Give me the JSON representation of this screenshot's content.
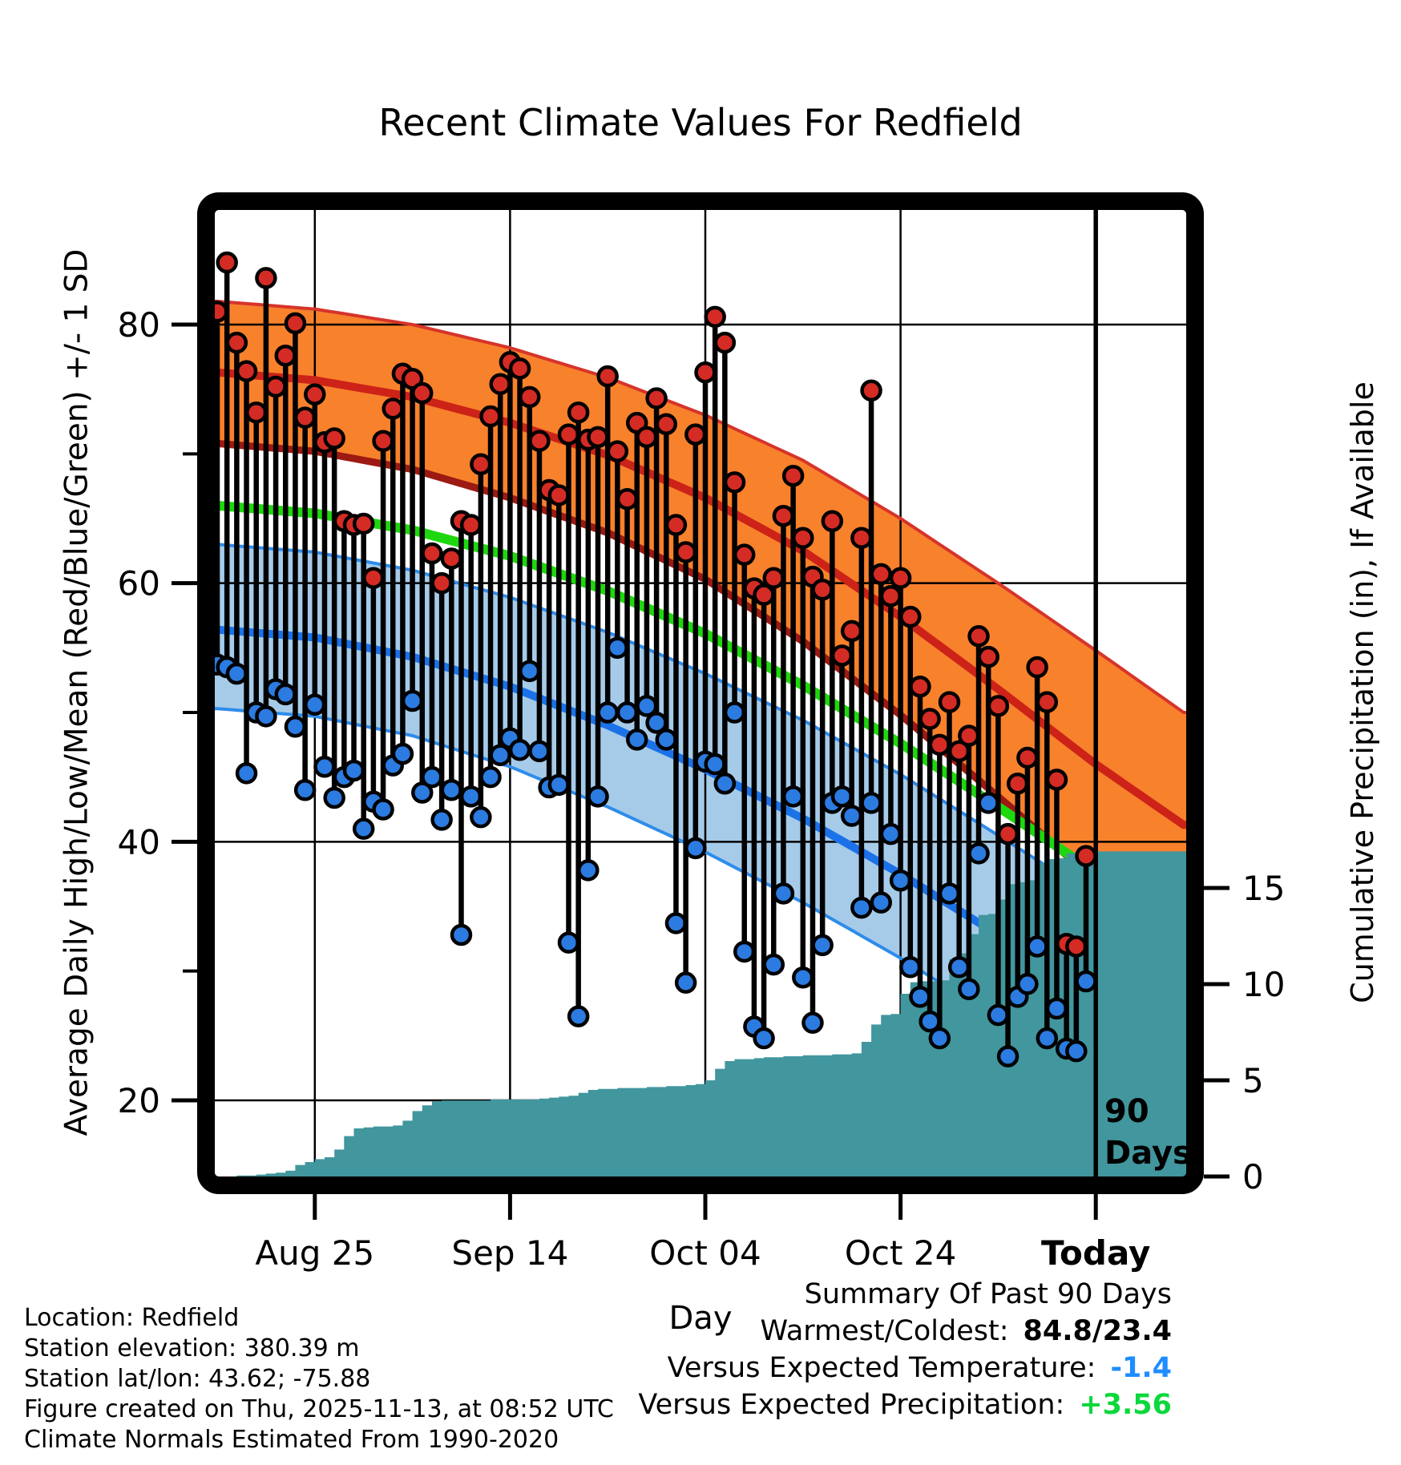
{
  "title": "Recent Climate Values For Redfield",
  "axes": {
    "y_left_label": "Average Daily High/Low/Mean (Red/Blue/Green) +/- 1 SD",
    "y_right_label": "Cumulative Precipitation (in), If Available",
    "x_label": "Day",
    "x_ticks": [
      "Aug 25",
      "Sep 14",
      "Oct 04",
      "Oct 24",
      "Today"
    ],
    "y_left_ticks": [
      80,
      60,
      40,
      20
    ],
    "y_left_minor_ticks": [
      70,
      50,
      30
    ],
    "y_right_ticks": [
      15,
      10,
      5,
      0
    ]
  },
  "footer_left": {
    "line1": "Location: Redfield",
    "line2": "Station elevation: 380.39 m",
    "line3": "Station lat/lon: 43.62; -75.88",
    "line4": "Figure created on Thu, 2025-11-13, at 08:52 UTC",
    "line5": "Climate Normals Estimated From 1990-2020"
  },
  "summary": {
    "title": "Summary Of Past 90 Days",
    "warmest_coldest_label": "Warmest/Coldest:",
    "warmest_coldest_value": "84.8/23.4",
    "vs_temp_label": "Versus Expected Temperature:",
    "vs_temp_value": "-1.4",
    "vs_precip_label": "Versus Expected Precipitation:",
    "vs_precip_value": "+3.56"
  },
  "chart_data": {
    "type": "line",
    "subtype": "daily-stem-plot-with-climate-normal-bands-and-cumulative-precip-area",
    "n_days": 90,
    "x_start": "Aug 15",
    "x_end_label": "Today",
    "annotation": {
      "line1": "90",
      "line2": "Days"
    },
    "ylim_left_F": [
      14,
      89
    ],
    "y_right_unit": "in",
    "grid": "major-only",
    "daily_high_F": [
      81.0,
      84.8,
      78.6,
      76.4,
      73.2,
      83.6,
      75.2,
      77.6,
      80.1,
      72.8,
      74.6,
      70.9,
      71.2,
      64.8,
      64.5,
      64.6,
      60.4,
      71.0,
      73.5,
      76.2,
      75.8,
      74.7,
      62.3,
      60.0,
      61.9,
      64.8,
      64.5,
      69.2,
      72.9,
      75.4,
      77.1,
      76.6,
      74.4,
      71.0,
      67.2,
      66.8,
      71.5,
      73.2,
      71.1,
      71.3,
      76.0,
      70.2,
      66.5,
      72.4,
      71.3,
      74.3,
      72.3,
      64.5,
      62.4,
      71.5,
      76.3,
      80.6,
      78.6,
      67.8,
      62.2,
      59.6,
      59.1,
      60.4,
      65.2,
      68.3,
      63.5,
      60.5,
      59.5,
      64.8,
      54.4,
      56.3,
      63.5,
      74.9,
      60.7,
      59.0,
      60.4,
      57.4,
      52.0,
      49.5,
      47.5,
      50.8,
      47.0,
      48.2,
      55.9,
      54.3,
      50.5,
      40.6,
      44.5,
      46.5,
      53.5,
      50.8,
      44.8,
      32.1,
      31.9,
      38.9
    ],
    "daily_low_F": [
      53.7,
      53.5,
      53.0,
      45.3,
      50.0,
      49.7,
      51.8,
      51.4,
      48.9,
      44.0,
      50.6,
      45.8,
      43.4,
      45.0,
      45.5,
      41.0,
      43.1,
      42.5,
      45.9,
      46.8,
      50.9,
      43.8,
      45.0,
      41.7,
      44.0,
      32.8,
      43.5,
      41.9,
      45.0,
      46.7,
      48.0,
      47.1,
      53.2,
      47.0,
      44.2,
      44.4,
      32.2,
      26.5,
      37.8,
      43.5,
      50.0,
      55.0,
      50.0,
      47.9,
      50.5,
      49.2,
      47.9,
      33.7,
      29.1,
      39.5,
      46.2,
      46.0,
      44.5,
      50.0,
      31.5,
      25.7,
      24.8,
      30.5,
      36.0,
      43.5,
      29.5,
      26.0,
      32.0,
      43.0,
      43.5,
      42.0,
      34.9,
      43.0,
      35.3,
      40.6,
      37.0,
      30.3,
      28.0,
      26.1,
      24.8,
      36.0,
      30.3,
      28.6,
      39.1,
      43.0,
      26.6,
      23.4,
      28.0,
      29.0,
      31.9,
      24.8,
      27.1,
      24.0,
      23.8,
      29.2
    ],
    "cumulative_precip_in": [
      0,
      0,
      0.05,
      0.05,
      0.1,
      0.15,
      0.2,
      0.3,
      0.6,
      0.75,
      0.9,
      1.0,
      1.4,
      2.1,
      2.5,
      2.55,
      2.6,
      2.6,
      2.65,
      2.9,
      3.4,
      3.7,
      3.9,
      3.95,
      3.95,
      3.95,
      3.95,
      3.95,
      4.0,
      4.0,
      4.0,
      4.0,
      4.0,
      4.05,
      4.1,
      4.15,
      4.2,
      4.35,
      4.5,
      4.55,
      4.55,
      4.6,
      4.6,
      4.6,
      4.65,
      4.65,
      4.7,
      4.7,
      4.75,
      4.8,
      5.0,
      5.6,
      6.0,
      6.1,
      6.1,
      6.15,
      6.2,
      6.2,
      6.25,
      6.25,
      6.3,
      6.3,
      6.3,
      6.35,
      6.35,
      6.4,
      7.0,
      7.9,
      8.4,
      8.45,
      9.5,
      10.1,
      10.15,
      10.15,
      10.2,
      11.3,
      11.6,
      12.6,
      13.6,
      13.65,
      14.4,
      15.2,
      15.3,
      15.4,
      16.3,
      16.5,
      16.55,
      16.8,
      16.9,
      16.9
    ],
    "normals_anchor_days": [
      0,
      10,
      20,
      30,
      40,
      50,
      60,
      70,
      80,
      90,
      99
    ],
    "normal_high_plus1sd": [
      81.8,
      81.2,
      80.0,
      78.2,
      75.9,
      73.0,
      69.5,
      65.0,
      60.0,
      54.8,
      50.0
    ],
    "normal_high_mean": [
      76.3,
      75.7,
      74.4,
      72.4,
      69.9,
      66.6,
      62.5,
      57.4,
      51.8,
      46.0,
      41.3
    ],
    "normal_high_minus1sd": [
      70.8,
      70.2,
      68.8,
      66.6,
      63.9,
      60.3,
      55.5,
      49.8,
      43.5,
      37.0,
      32.5
    ],
    "normal_mean_temp": [
      66.0,
      65.4,
      64.1,
      62.1,
      59.4,
      56.1,
      52.1,
      47.6,
      42.7,
      37.6,
      33.1
    ],
    "normal_low_plus1sd": [
      63.0,
      62.4,
      61.0,
      58.9,
      56.2,
      53.0,
      49.4,
      45.2,
      40.5,
      35.7,
      31.3
    ],
    "normal_low_mean": [
      56.4,
      55.8,
      54.3,
      52.0,
      49.0,
      45.6,
      41.8,
      37.5,
      32.8,
      28.0,
      23.7
    ],
    "normal_low_minus1sd": [
      50.3,
      49.7,
      48.2,
      45.8,
      42.7,
      39.2,
      35.3,
      31.0,
      26.3,
      21.5,
      17.2
    ],
    "colors": {
      "high_band_fill": "#f8812c",
      "high_band_edge": "#d6342b",
      "high_band_lower_edge": "#9c1a12",
      "high_mean_line": "#cc2218",
      "mean_temp_line": "#1fd70e",
      "low_band_fill": "#a6cbe8",
      "low_band_edge": "#2e8ceb",
      "low_mean_line": "#1b72e8",
      "precip_area": "#42969e",
      "high_dot": "#d42b24",
      "low_dot": "#2b7be0",
      "grid": "#000000",
      "frame": "#000000"
    }
  }
}
